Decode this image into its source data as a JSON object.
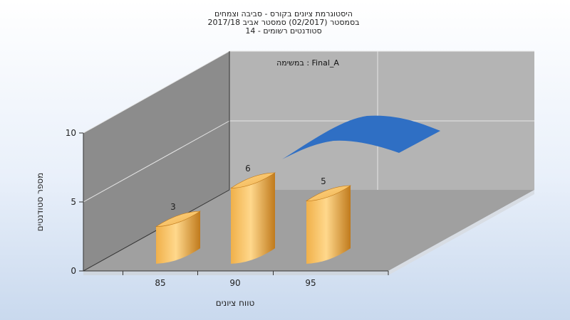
{
  "chart_data": {
    "type": "bar",
    "title_lines": [
      "היסטוגרמת ציונים בקורס - סביבה וצמחים",
      "בסמסטר  (02/2017)  סמסטר אביב 2017/18",
      "סטודנטים רשומים - 14"
    ],
    "annotation": "במשימה : Final_A",
    "xlabel": "טווח ציונים",
    "ylabel": "מספר סטודנטים",
    "categories": [
      "85",
      "90",
      "95"
    ],
    "series": [
      {
        "values": [
          3,
          6,
          5
        ]
      }
    ],
    "y_ticks": [
      "0",
      "5",
      "10"
    ],
    "ylim": [
      0,
      10
    ],
    "grid": true,
    "overlay_curve": "normal-distribution",
    "colors": {
      "bar_light": "#ffd88c",
      "bar_mid": "#f0b04a",
      "bar_dark": "#c07a1c",
      "curve": "#2f6fc4",
      "wall_back": "#b4b4b4",
      "wall_left": "#8c8c8c",
      "floor": "#a0a0a0"
    }
  }
}
